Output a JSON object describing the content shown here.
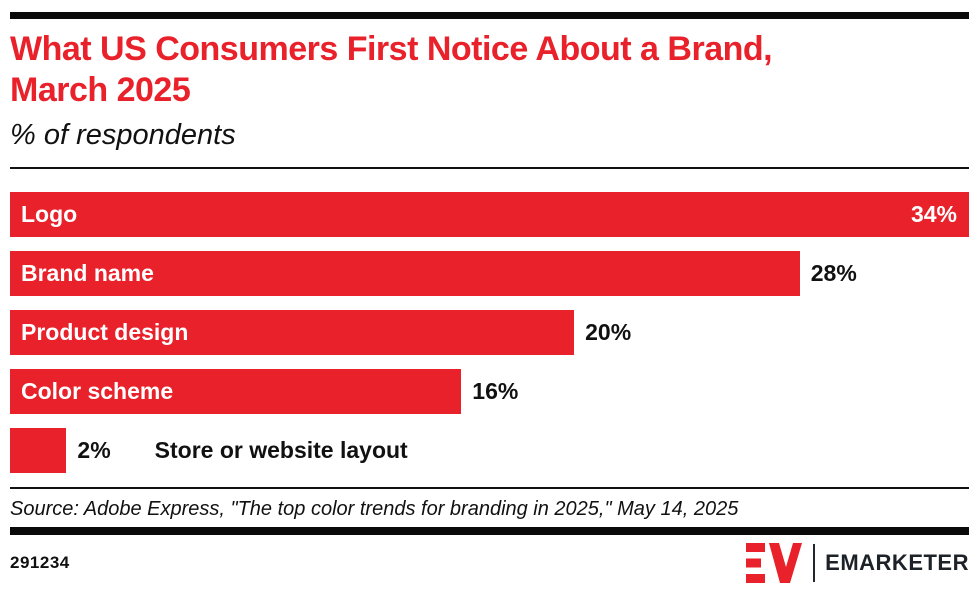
{
  "header": {
    "title_line1": "What US Consumers First Notice About a Brand,",
    "title_line2": "March 2025",
    "subtitle": "% of respondents"
  },
  "chart_data": {
    "type": "bar",
    "orientation": "horizontal",
    "title": "What US Consumers First Notice About a Brand, March 2025",
    "subtitle": "% of respondents",
    "unit": "%",
    "categories": [
      "Logo",
      "Brand name",
      "Product design",
      "Color scheme",
      "Store or website layout"
    ],
    "values": [
      34,
      28,
      20,
      16,
      2
    ],
    "value_labels": [
      "34%",
      "28%",
      "20%",
      "16%",
      "2%"
    ],
    "label_placement": [
      "inside",
      "inside",
      "inside",
      "inside",
      "outside"
    ],
    "value_placement": [
      "inside",
      "outside",
      "outside",
      "outside",
      "outside"
    ],
    "xlim": [
      0,
      34
    ],
    "grid": false,
    "legend": false,
    "bar_color": "#e8212a",
    "inside_text_color": "#ffffff",
    "outside_text_color": "#111111"
  },
  "footer": {
    "source": "Source: Adobe Express, \"The top color trends for branding in 2025,\" May 14, 2025",
    "chart_id": "291234",
    "brand": "EMARKETER"
  },
  "colors": {
    "accent_red": "#e8212a",
    "rule_black": "#0a0a0a",
    "text_black": "#111111"
  }
}
